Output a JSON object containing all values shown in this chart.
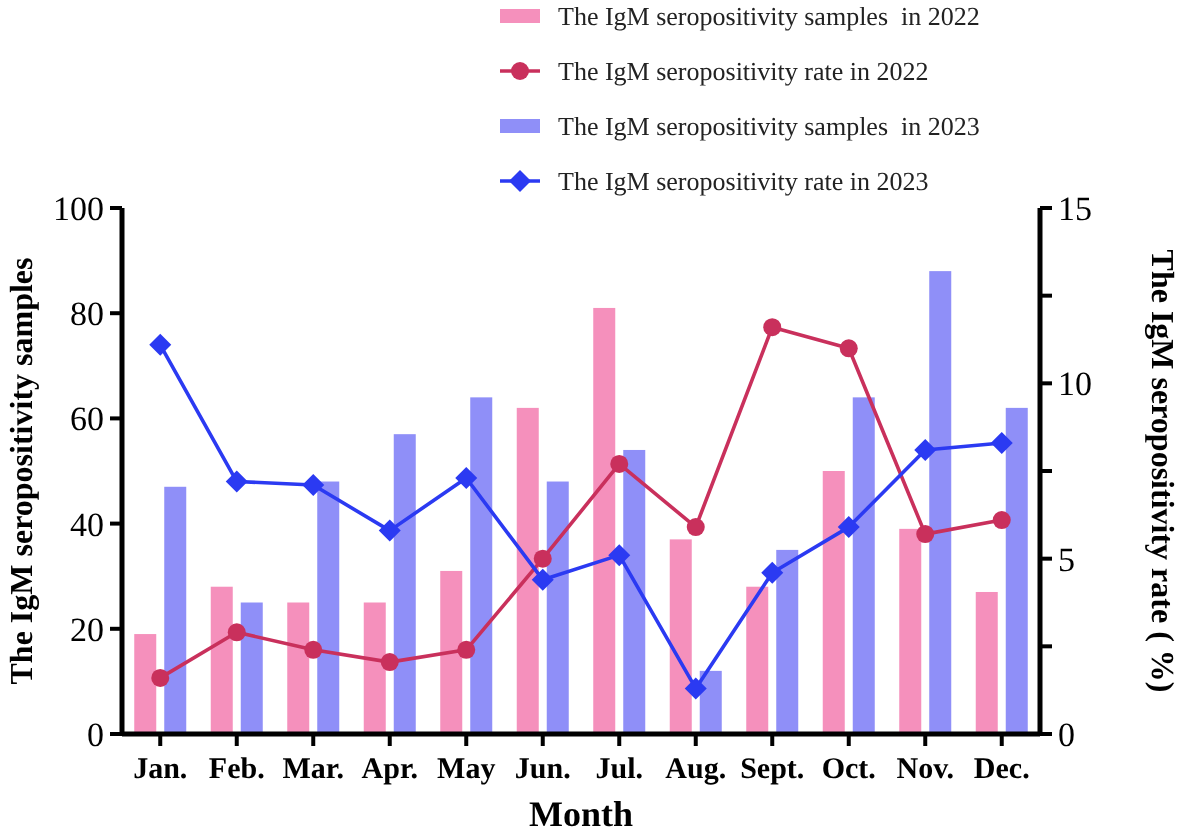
{
  "chart_data": {
    "type": "bar",
    "xlabel": "Month",
    "ylabel": "The IgM seropositivity samples",
    "y2label": "The IgM seropositivity rate ( %)",
    "categories": [
      "Jan.",
      "Feb.",
      "Mar.",
      "Apr.",
      "May",
      "Jun.",
      "Jul.",
      "Aug.",
      "Sept.",
      "Oct.",
      "Nov.",
      "Dec."
    ],
    "series": [
      {
        "name": "The IgM seropositivity samples  in 2022",
        "color": "#f590bc",
        "values": [
          19,
          28,
          25,
          25,
          31,
          62,
          81,
          37,
          28,
          50,
          39,
          27
        ]
      },
      {
        "name": "The IgM seropositivity rate in 2022",
        "type": "line",
        "axis": "y2",
        "marker": "circle",
        "color": "#c9305c",
        "values": [
          1.6,
          2.9,
          2.4,
          2.05,
          2.4,
          5.0,
          7.7,
          5.9,
          11.6,
          11.0,
          5.7,
          6.1
        ]
      },
      {
        "name": "The IgM seropositivity samples  in 2023",
        "color": "#8f8ff8",
        "values": [
          47,
          25,
          48,
          57,
          64,
          48,
          54,
          12,
          35,
          64,
          88,
          62
        ]
      },
      {
        "name": "The IgM seropositivity rate in 2023",
        "type": "line",
        "axis": "y2",
        "marker": "diamond",
        "color": "#2b3af2",
        "values": [
          11.1,
          7.2,
          7.1,
          5.8,
          7.3,
          4.4,
          5.1,
          1.3,
          4.6,
          5.9,
          8.1,
          8.3
        ]
      }
    ],
    "ylim": [
      0,
      100
    ],
    "yticks": [
      0,
      20,
      40,
      60,
      80,
      100
    ],
    "y2lim": [
      0,
      15
    ],
    "y2ticks": [
      0,
      {
        "value": 2.5,
        "label": null
      },
      5,
      {
        "value": 7.5,
        "label": null
      },
      10,
      {
        "value": 12.5,
        "label": null
      },
      15
    ],
    "legend": "top",
    "grid": false
  }
}
